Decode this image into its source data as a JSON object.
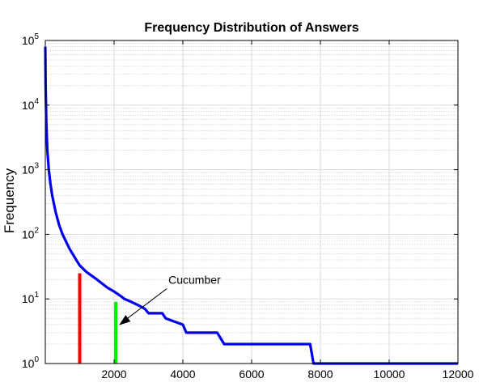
{
  "chart_data": {
    "type": "line",
    "title": "Frequency Distribution of Answers",
    "xlabel": "",
    "ylabel": "Frequency",
    "yscale": "log",
    "xlim": [
      0,
      12000
    ],
    "ylim": [
      1,
      100000
    ],
    "grid": true,
    "minor_grid_y": true,
    "x_ticks": [
      2000,
      4000,
      6000,
      8000,
      10000,
      12000
    ],
    "x_tick_labels": [
      "2000",
      "4000",
      "6000",
      "8000",
      "10000",
      "12000"
    ],
    "y_ticks": [
      1,
      10,
      100,
      1000,
      10000,
      100000
    ],
    "y_tick_labels": [
      {
        "base": "10",
        "exp": "0"
      },
      {
        "base": "10",
        "exp": "1"
      },
      {
        "base": "10",
        "exp": "2"
      },
      {
        "base": "10",
        "exp": "3"
      },
      {
        "base": "10",
        "exp": "4"
      },
      {
        "base": "10",
        "exp": "5"
      }
    ],
    "series": [
      {
        "color": "#0000ee",
        "x": [
          1,
          10,
          30,
          60,
          100,
          150,
          200,
          300,
          400,
          500,
          700,
          900,
          1000,
          1200,
          1500,
          1800,
          2000,
          2200,
          2300,
          2500,
          2700,
          2900,
          3000,
          3400,
          3500,
          4000,
          4100,
          5000,
          5200,
          7700,
          7800,
          12000
        ],
        "y": [
          80000,
          20000,
          5000,
          2000,
          1000,
          600,
          400,
          220,
          140,
          100,
          60,
          40,
          33,
          26,
          20,
          15,
          13,
          11,
          10,
          9,
          8,
          7,
          6,
          6,
          5,
          4,
          3,
          3,
          2,
          2,
          1,
          1
        ]
      }
    ],
    "markers": [
      {
        "x": 1000,
        "y": 25,
        "color": "#ff0000"
      },
      {
        "x": 2050,
        "y": 9,
        "color": "#00ee00"
      }
    ],
    "annotations": [
      {
        "text": "Cucumber",
        "x": 2050,
        "y": 3.5
      }
    ]
  }
}
